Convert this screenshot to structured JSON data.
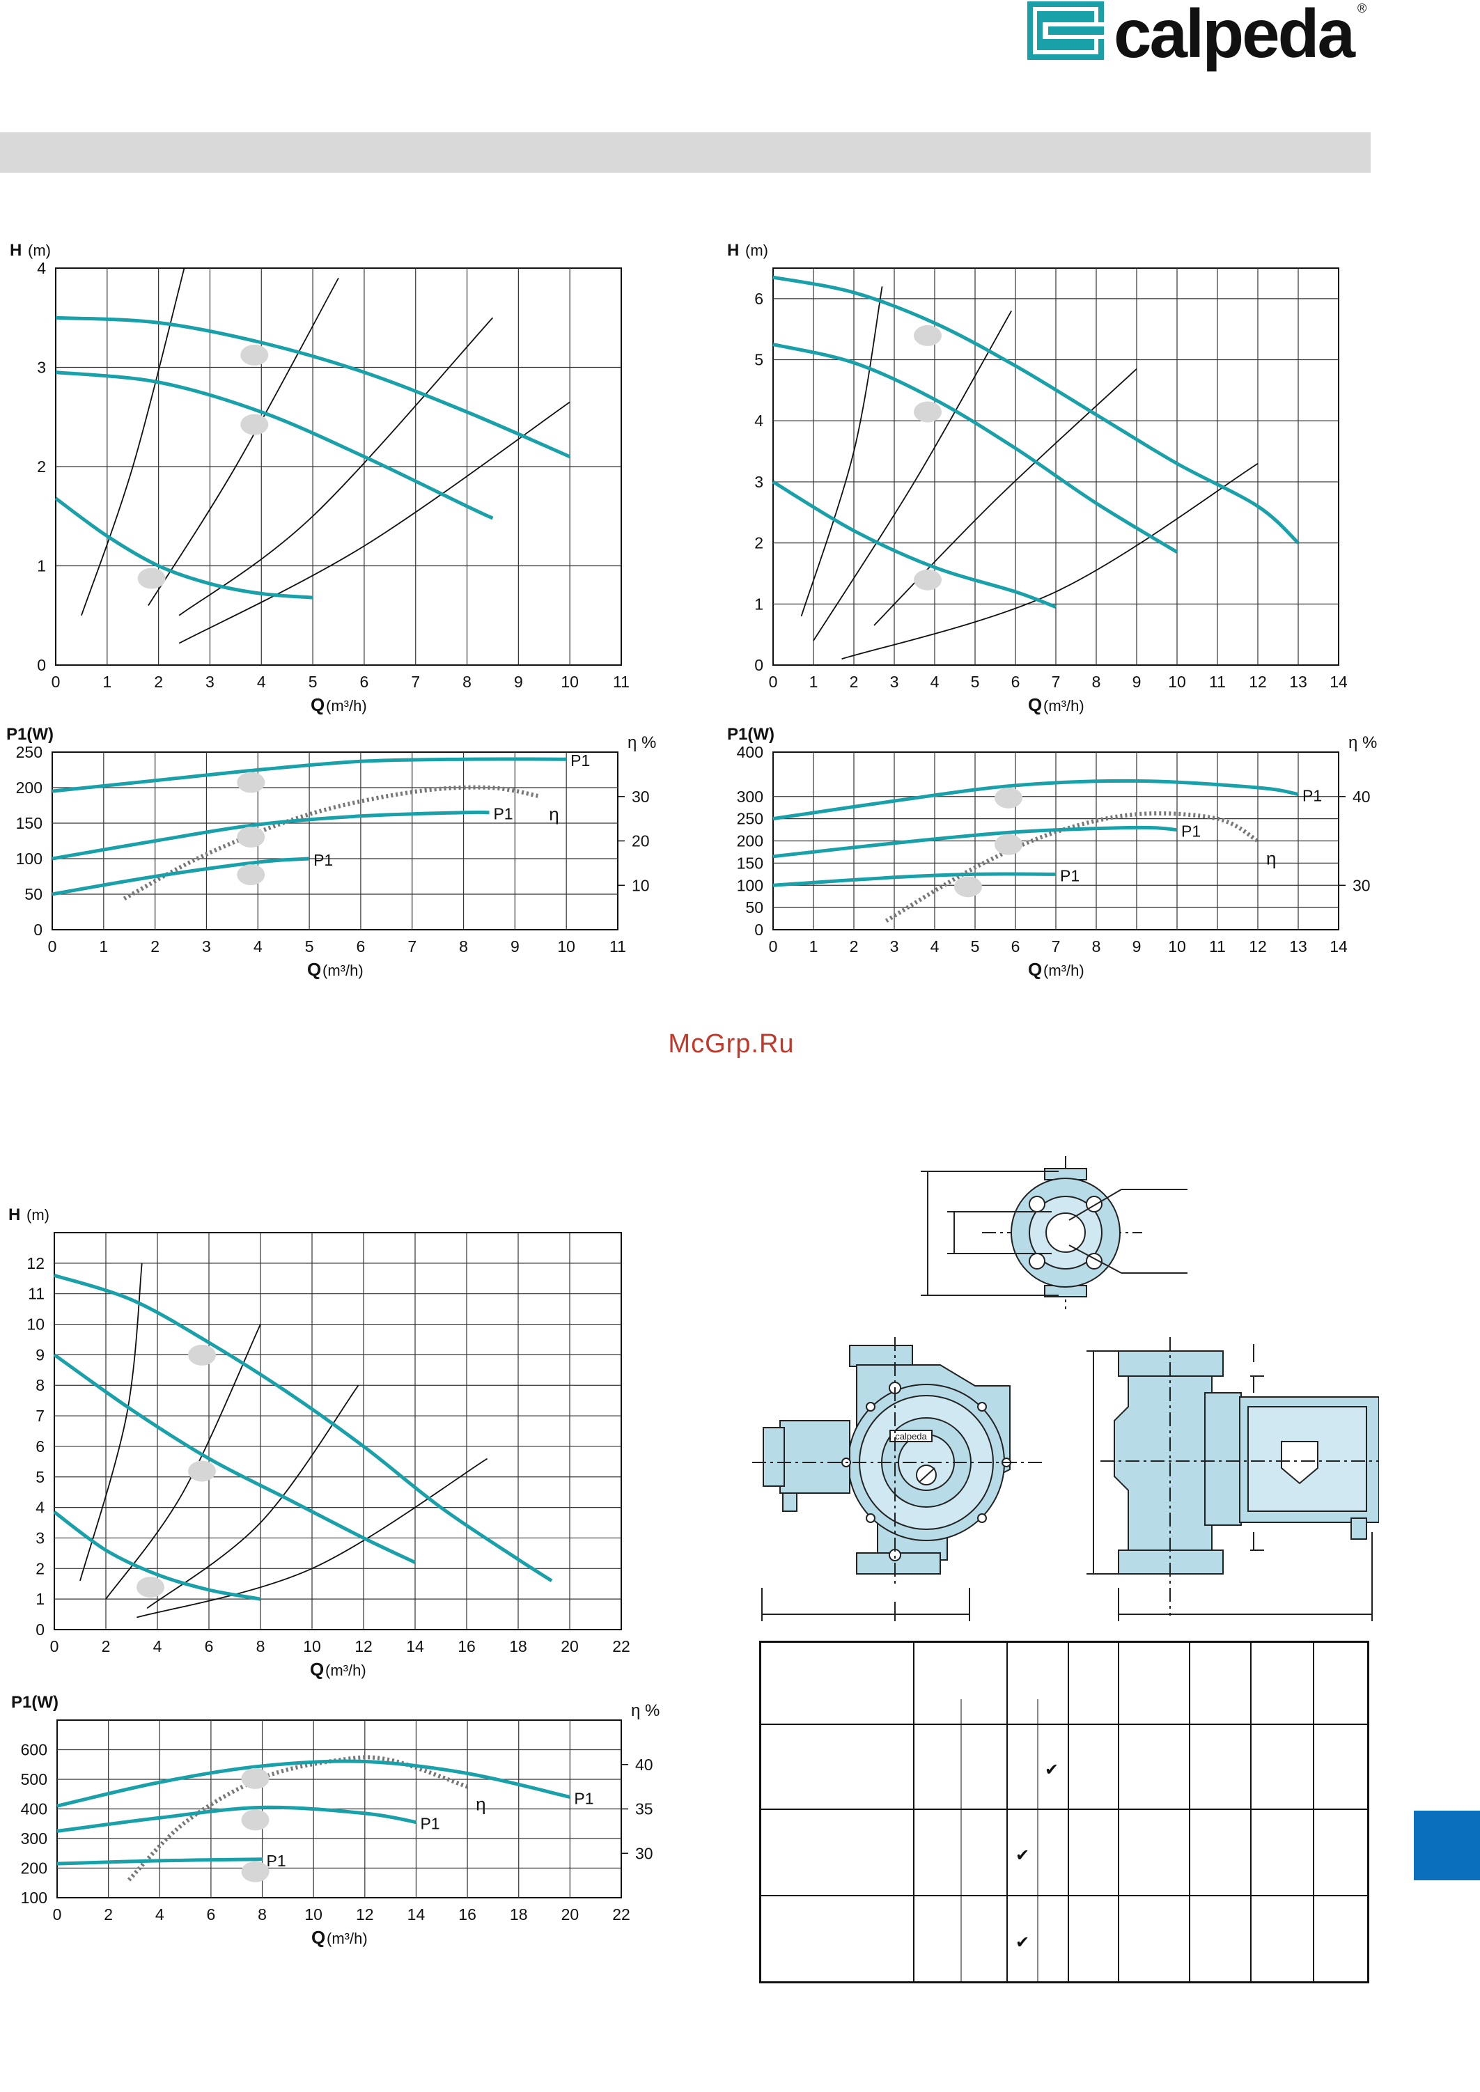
{
  "brand": {
    "name": "calpeda",
    "registered": "®",
    "accent": "#1aa0a8",
    "tab_color": "#0a6fbd"
  },
  "watermark": "McGrp.Ru",
  "check_mark": "✔",
  "chart_data": [
    {
      "id": "head-1",
      "type": "line",
      "ylabel": "H",
      "yunit": "(m)",
      "xlabel": "Q",
      "xunit": "(m³/h)",
      "xlim": [
        0,
        11
      ],
      "ylim": [
        0,
        4
      ],
      "xticks": [
        "0",
        "1",
        "2",
        "3",
        "4",
        "5",
        "6",
        "7",
        "8",
        "9",
        "10",
        "11"
      ],
      "yticks": [
        "0",
        "1",
        "2",
        "3",
        "4"
      ],
      "series": [
        {
          "x": [
            0,
            2,
            4,
            6,
            8,
            10
          ],
          "y": [
            3.5,
            3.45,
            3.25,
            2.95,
            2.55,
            2.1
          ]
        },
        {
          "x": [
            0,
            2,
            4,
            6,
            8,
            8.5
          ],
          "y": [
            2.95,
            2.85,
            2.55,
            2.1,
            1.6,
            1.48
          ]
        },
        {
          "x": [
            0,
            1,
            2,
            3,
            4,
            5
          ],
          "y": [
            1.68,
            1.3,
            1.0,
            0.82,
            0.72,
            0.68
          ]
        }
      ],
      "system_curves": [
        {
          "x": [
            0.5,
            1.5,
            2.5
          ],
          "y": [
            0.5,
            2.0,
            4.0
          ]
        },
        {
          "x": [
            1.8,
            3.5,
            5.5
          ],
          "y": [
            0.6,
            2.0,
            3.9
          ]
        },
        {
          "x": [
            2.4,
            5,
            8.5
          ],
          "y": [
            0.5,
            1.5,
            3.5
          ]
        },
        {
          "x": [
            2.4,
            6,
            10
          ],
          "y": [
            0.22,
            1.2,
            2.65
          ]
        }
      ]
    },
    {
      "id": "power-1",
      "type": "line",
      "ylabel": "P1(W)",
      "y2label": "η %",
      "xlabel": "Q",
      "xunit": "(m³/h)",
      "xlim": [
        0,
        11
      ],
      "ylim": [
        0,
        250
      ],
      "y2lim": [
        0,
        40
      ],
      "xticks": [
        "0",
        "1",
        "2",
        "3",
        "4",
        "5",
        "6",
        "7",
        "8",
        "9",
        "10",
        "11"
      ],
      "yticks": [
        "0",
        "50",
        "100",
        "150",
        "200",
        "250"
      ],
      "y2ticks": [
        "10",
        "20",
        "30"
      ],
      "series": [
        {
          "name": "P1",
          "x": [
            0,
            2,
            4,
            6,
            8,
            10
          ],
          "y": [
            195,
            210,
            225,
            237,
            240,
            240
          ]
        },
        {
          "name": "P1",
          "x": [
            0,
            2,
            4,
            6,
            8,
            8.5
          ],
          "y": [
            100,
            125,
            148,
            160,
            165,
            165
          ]
        },
        {
          "name": "P1",
          "x": [
            0,
            2,
            4,
            5
          ],
          "y": [
            50,
            75,
            95,
            100
          ]
        }
      ],
      "efficiency": {
        "name": "η",
        "x": [
          1.4,
          3,
          5,
          7,
          8.5,
          9.5
        ],
        "y": [
          7,
          17,
          26,
          31,
          32,
          30
        ]
      }
    },
    {
      "id": "head-2",
      "type": "line",
      "ylabel": "H",
      "yunit": "(m)",
      "xlabel": "Q",
      "xunit": "(m³/h)",
      "xlim": [
        0,
        14
      ],
      "ylim": [
        0,
        6.5
      ],
      "xticks": [
        "0",
        "1",
        "2",
        "3",
        "4",
        "5",
        "6",
        "7",
        "8",
        "9",
        "10",
        "11",
        "12",
        "13",
        "14"
      ],
      "yticks": [
        "0",
        "1",
        "2",
        "3",
        "4",
        "5",
        "6"
      ],
      "series": [
        {
          "x": [
            0,
            2,
            4,
            6,
            8,
            10,
            12,
            13
          ],
          "y": [
            6.35,
            6.1,
            5.6,
            4.9,
            4.1,
            3.3,
            2.6,
            2.0
          ]
        },
        {
          "x": [
            0,
            2,
            4,
            6,
            8,
            10
          ],
          "y": [
            5.25,
            4.95,
            4.35,
            3.55,
            2.65,
            1.85
          ]
        },
        {
          "x": [
            0,
            2,
            4,
            6,
            7
          ],
          "y": [
            3.0,
            2.2,
            1.6,
            1.2,
            0.95
          ]
        }
      ],
      "system_curves": [
        {
          "x": [
            0.7,
            2,
            2.7
          ],
          "y": [
            0.8,
            3.5,
            6.2
          ]
        },
        {
          "x": [
            1,
            3.5,
            5.9
          ],
          "y": [
            0.4,
            3.0,
            5.8
          ]
        },
        {
          "x": [
            2.5,
            5.5,
            9
          ],
          "y": [
            0.65,
            2.7,
            4.85
          ]
        },
        {
          "x": [
            1.7,
            7,
            12
          ],
          "y": [
            0.1,
            1.2,
            3.3
          ]
        }
      ]
    },
    {
      "id": "power-2",
      "type": "line",
      "ylabel": "P1(W)",
      "y2label": "η %",
      "xlabel": "Q",
      "xunit": "(m³/h)",
      "xlim": [
        0,
        14
      ],
      "ylim": [
        0,
        400
      ],
      "y2lim": [
        25,
        45
      ],
      "xticks": [
        "0",
        "1",
        "2",
        "3",
        "4",
        "5",
        "6",
        "7",
        "8",
        "9",
        "10",
        "11",
        "12",
        "13",
        "14"
      ],
      "yticks": [
        "0",
        "50",
        "100",
        "150",
        "200",
        "250",
        "300",
        "400"
      ],
      "y2ticks": [
        "30",
        "40"
      ],
      "series": [
        {
          "name": "P1",
          "x": [
            0,
            3,
            6,
            9,
            12,
            13
          ],
          "y": [
            250,
            290,
            325,
            335,
            320,
            305
          ]
        },
        {
          "name": "P1",
          "x": [
            0,
            3,
            6,
            9,
            10
          ],
          "y": [
            165,
            195,
            220,
            230,
            225
          ]
        },
        {
          "name": "P1",
          "x": [
            0,
            3,
            5,
            7
          ],
          "y": [
            100,
            118,
            125,
            125
          ]
        }
      ],
      "efficiency": {
        "name": "η",
        "x": [
          2.8,
          5,
          7,
          9,
          11,
          12
        ],
        "y": [
          26,
          32,
          36,
          38,
          37.5,
          35
        ]
      }
    },
    {
      "id": "head-3",
      "type": "line",
      "ylabel": "H",
      "yunit": "(m)",
      "xlabel": "Q",
      "xunit": "(m³/h)",
      "xlim": [
        0,
        22
      ],
      "ylim": [
        0,
        13
      ],
      "xticks": [
        "0",
        "2",
        "4",
        "6",
        "8",
        "10",
        "12",
        "14",
        "16",
        "18",
        "20",
        "22"
      ],
      "yticks": [
        "0",
        "1",
        "2",
        "3",
        "4",
        "5",
        "6",
        "7",
        "8",
        "9",
        "10",
        "11",
        "12"
      ],
      "series": [
        {
          "x": [
            0,
            3,
            6,
            9,
            12,
            15,
            18,
            19.3
          ],
          "y": [
            11.6,
            10.8,
            9.4,
            7.8,
            6.0,
            4.0,
            2.3,
            1.6
          ]
        },
        {
          "x": [
            0,
            3,
            6,
            9,
            12,
            14
          ],
          "y": [
            9.0,
            7.2,
            5.6,
            4.3,
            3.0,
            2.2
          ]
        },
        {
          "x": [
            0,
            2,
            4,
            6,
            8
          ],
          "y": [
            3.85,
            2.6,
            1.8,
            1.3,
            1.0
          ]
        }
      ],
      "system_curves": [
        {
          "x": [
            1,
            2.8,
            3.4
          ],
          "y": [
            1.6,
            7,
            12.0
          ]
        },
        {
          "x": [
            2,
            5,
            8
          ],
          "y": [
            1.0,
            4.5,
            10.0
          ]
        },
        {
          "x": [
            3.6,
            8,
            11.8
          ],
          "y": [
            0.7,
            3.5,
            8.0
          ]
        },
        {
          "x": [
            3.2,
            10,
            16.8
          ],
          "y": [
            0.4,
            2.0,
            5.6
          ]
        }
      ]
    },
    {
      "id": "power-3",
      "type": "line",
      "ylabel": "P1(W)",
      "y2label": "η %",
      "xlabel": "Q",
      "xunit": "(m³/h)",
      "xlim": [
        0,
        22
      ],
      "ylim": [
        100,
        700
      ],
      "y2lim": [
        25,
        45
      ],
      "xticks": [
        "0",
        "2",
        "4",
        "6",
        "8",
        "10",
        "12",
        "14",
        "16",
        "18",
        "20",
        "22"
      ],
      "yticks": [
        "100",
        "200",
        "300",
        "400",
        "500",
        "600"
      ],
      "y2ticks": [
        "30",
        "35",
        "40"
      ],
      "series": [
        {
          "name": "P1",
          "x": [
            0,
            4,
            8,
            12,
            16,
            20
          ],
          "y": [
            410,
            490,
            545,
            560,
            520,
            440
          ]
        },
        {
          "name": "P1",
          "x": [
            0,
            4,
            8,
            12,
            14
          ],
          "y": [
            325,
            370,
            405,
            385,
            355
          ]
        },
        {
          "name": "P1",
          "x": [
            0,
            4,
            8
          ],
          "y": [
            215,
            225,
            230
          ]
        }
      ],
      "efficiency": {
        "name": "η",
        "x": [
          2.8,
          5,
          8,
          11,
          13,
          16
        ],
        "y": [
          27,
          33.5,
          38.5,
          40.5,
          40.5,
          37.5
        ]
      }
    }
  ],
  "spec_table": {
    "rows": [
      {
        "check": "",
        "check_col": 0
      },
      {
        "check": "✔",
        "check_col": 3
      },
      {
        "check": "✔",
        "check_col": 2
      },
      {
        "check": "✔",
        "check_col": 2
      }
    ]
  },
  "drawing": {
    "nameplate": "calpeda"
  }
}
